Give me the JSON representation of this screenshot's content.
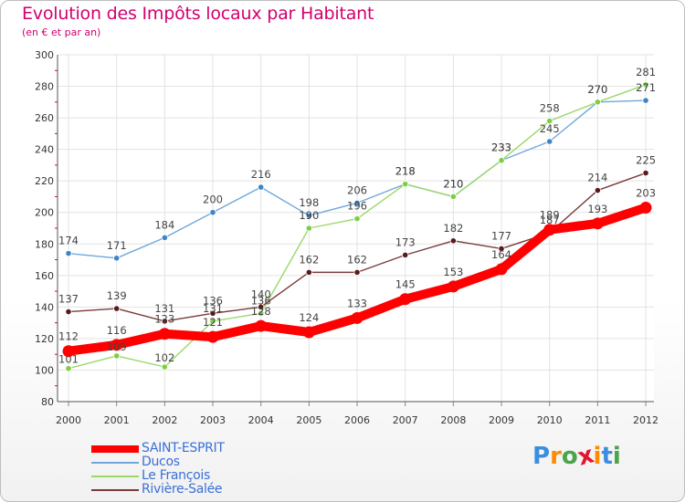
{
  "title": "Evolution des Impôts locaux par Habitant",
  "subtitle": "(en € et par an)",
  "logo": {
    "text": "Proxiti",
    "letters": [
      "P",
      "r",
      "o",
      "x",
      "i",
      "t",
      "i"
    ],
    "colors": [
      "#3b8ede",
      "#ff8a00",
      "#4aa44a",
      "#e0182d",
      "#ff8a00",
      "#3b8ede",
      "#4aa44a"
    ]
  },
  "chart_data": {
    "type": "line",
    "x": [
      "2000",
      "2001",
      "2002",
      "2003",
      "2004",
      "2005",
      "2006",
      "2007",
      "2008",
      "2009",
      "2010",
      "2011",
      "2012"
    ],
    "ylim": [
      80,
      300
    ],
    "yticks": [
      "80",
      "100",
      "120",
      "140",
      "160",
      "180",
      "200",
      "220",
      "240",
      "260",
      "280",
      "300"
    ],
    "grid": true,
    "legend_position": "bottom-left",
    "series": [
      {
        "name": "SAINT-ESPRIT",
        "values": [
          112,
          116,
          123,
          121,
          128,
          124,
          133,
          145,
          153,
          164,
          189,
          193,
          203
        ],
        "labels": [
          "112",
          "116",
          "123",
          "121",
          "128",
          "124",
          "133",
          "145",
          "153",
          "164",
          "189",
          "193",
          "203"
        ],
        "color": "#ff0000",
        "marker_color": "#ff0000"
      },
      {
        "name": "Ducos",
        "values": [
          174,
          171,
          184,
          200,
          216,
          198,
          206,
          218,
          210,
          233,
          245,
          270,
          271
        ],
        "labels": [
          "174",
          "171",
          "184",
          "200",
          "216",
          "198",
          "206",
          "218",
          "210",
          "233",
          "245",
          "270",
          "271"
        ],
        "color": "#6fa8dc",
        "marker_color": "#3d85c6"
      },
      {
        "name": "Le François",
        "values": [
          101,
          109,
          102,
          131,
          136,
          190,
          196,
          218,
          210,
          233,
          258,
          270,
          281
        ],
        "labels": [
          "101",
          "109",
          "102",
          "131",
          "136",
          "190",
          "196",
          "218",
          "210",
          "233",
          "258",
          "270",
          "281"
        ],
        "color": "#9ad86a",
        "marker_color": "#7ccf3f"
      },
      {
        "name": "Rivière-Salée",
        "values": [
          137,
          139,
          131,
          136,
          140,
          162,
          162,
          173,
          182,
          177,
          187,
          214,
          225
        ],
        "labels": [
          "137",
          "139",
          "131",
          "136",
          "140",
          "162",
          "162",
          "173",
          "182",
          "177",
          "187",
          "214",
          "225"
        ],
        "color": "#7a3b3b",
        "marker_color": "#5a1a1a"
      }
    ]
  }
}
